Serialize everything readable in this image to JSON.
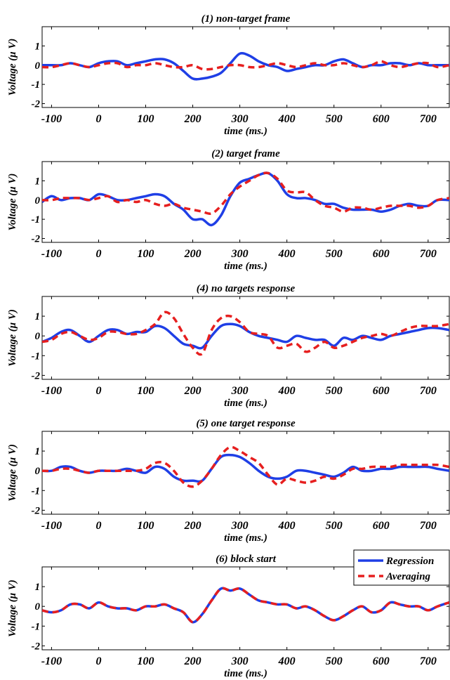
{
  "colors": {
    "regression": "#1f3fe6",
    "averaging": "#e61f1f",
    "axis": "#000000"
  },
  "legend": {
    "placement": "top-right",
    "entries": [
      "Regression",
      "Averaging"
    ]
  },
  "chart_data": [
    {
      "type": "line",
      "title": "(1) non-target frame",
      "xlabel": "time (ms.)",
      "ylabel": "Voltage (μ V)",
      "xlim": [
        -120,
        745
      ],
      "ylim": [
        -2.2,
        2.0
      ],
      "xticks": [
        "-100",
        "0",
        "100",
        "200",
        "300",
        "400",
        "500",
        "600",
        "700"
      ],
      "yticks": [
        "-2",
        "-1",
        "0",
        "1"
      ],
      "series": [
        {
          "name": "Regression",
          "x": [
            -120,
            -100,
            -80,
            -60,
            -40,
            -20,
            0,
            20,
            40,
            60,
            80,
            100,
            120,
            140,
            160,
            180,
            200,
            220,
            240,
            260,
            280,
            300,
            320,
            340,
            360,
            380,
            400,
            420,
            440,
            460,
            480,
            500,
            520,
            540,
            560,
            580,
            600,
            620,
            640,
            660,
            680,
            700,
            720,
            745
          ],
          "values": [
            0.0,
            0.0,
            0.0,
            0.1,
            0.0,
            -0.1,
            0.1,
            0.2,
            0.2,
            0.0,
            0.1,
            0.2,
            0.3,
            0.3,
            0.1,
            -0.3,
            -0.7,
            -0.7,
            -0.6,
            -0.4,
            0.1,
            0.6,
            0.5,
            0.2,
            0.0,
            -0.1,
            -0.3,
            -0.2,
            -0.1,
            0.0,
            0.0,
            0.2,
            0.3,
            0.1,
            -0.1,
            0.0,
            0.0,
            0.1,
            0.1,
            0.0,
            0.1,
            0.0,
            0.0,
            0.0
          ]
        },
        {
          "name": "Averaging",
          "x": [
            -120,
            -100,
            -80,
            -60,
            -40,
            -20,
            0,
            20,
            40,
            60,
            80,
            100,
            120,
            140,
            160,
            180,
            200,
            220,
            240,
            260,
            280,
            300,
            320,
            340,
            360,
            380,
            400,
            420,
            440,
            460,
            480,
            500,
            520,
            540,
            560,
            580,
            600,
            620,
            640,
            660,
            680,
            700,
            720,
            745
          ],
          "values": [
            -0.1,
            -0.1,
            0.0,
            0.1,
            0.0,
            -0.1,
            0.0,
            0.1,
            0.1,
            -0.1,
            0.0,
            0.0,
            0.1,
            0.0,
            -0.1,
            -0.1,
            0.0,
            -0.2,
            -0.2,
            -0.1,
            0.0,
            0.0,
            -0.1,
            -0.1,
            0.0,
            0.1,
            0.0,
            -0.1,
            0.0,
            0.1,
            0.0,
            0.0,
            0.1,
            0.0,
            -0.1,
            0.0,
            0.2,
            0.0,
            -0.1,
            0.0,
            0.1,
            0.1,
            -0.1,
            0.0
          ]
        }
      ]
    },
    {
      "type": "line",
      "title": "(2) target frame",
      "xlabel": "time (ms.)",
      "ylabel": "Voltage (μ V)",
      "xlim": [
        -120,
        745
      ],
      "ylim": [
        -2.2,
        2.0
      ],
      "xticks": [
        "-100",
        "0",
        "100",
        "200",
        "300",
        "400",
        "500",
        "600",
        "700"
      ],
      "yticks": [
        "-2",
        "-1",
        "0",
        "1"
      ],
      "series": [
        {
          "name": "Regression",
          "x": [
            -120,
            -100,
            -80,
            -60,
            -40,
            -20,
            0,
            20,
            40,
            60,
            80,
            100,
            120,
            140,
            160,
            180,
            200,
            220,
            240,
            260,
            280,
            300,
            320,
            340,
            360,
            380,
            400,
            420,
            440,
            460,
            480,
            500,
            520,
            540,
            560,
            580,
            600,
            620,
            640,
            660,
            680,
            700,
            720,
            745
          ],
          "values": [
            -0.1,
            0.2,
            0.0,
            0.1,
            0.1,
            0.0,
            0.3,
            0.2,
            0.0,
            0.0,
            0.1,
            0.2,
            0.3,
            0.2,
            -0.2,
            -0.5,
            -1.0,
            -1.0,
            -1.3,
            -0.8,
            0.2,
            0.9,
            1.1,
            1.3,
            1.4,
            1.0,
            0.3,
            0.1,
            0.1,
            0.0,
            -0.2,
            -0.2,
            -0.4,
            -0.5,
            -0.5,
            -0.5,
            -0.6,
            -0.5,
            -0.3,
            -0.2,
            -0.3,
            -0.3,
            0.0,
            0.0
          ]
        },
        {
          "name": "Averaging",
          "x": [
            -120,
            -100,
            -80,
            -60,
            -40,
            -20,
            0,
            20,
            40,
            60,
            80,
            100,
            120,
            140,
            160,
            180,
            200,
            220,
            240,
            260,
            280,
            300,
            320,
            340,
            360,
            380,
            400,
            420,
            440,
            460,
            480,
            500,
            520,
            540,
            560,
            580,
            600,
            620,
            640,
            660,
            680,
            700,
            720,
            745
          ],
          "values": [
            0.0,
            0.0,
            0.1,
            0.1,
            0.1,
            0.0,
            0.1,
            0.2,
            -0.1,
            0.0,
            -0.1,
            0.0,
            -0.2,
            -0.3,
            -0.2,
            -0.4,
            -0.5,
            -0.6,
            -0.7,
            -0.3,
            0.3,
            0.7,
            1.0,
            1.3,
            1.4,
            1.1,
            0.5,
            0.4,
            0.4,
            0.0,
            -0.3,
            -0.4,
            -0.6,
            -0.4,
            -0.4,
            -0.5,
            -0.4,
            -0.3,
            -0.3,
            -0.3,
            -0.4,
            -0.3,
            0.0,
            0.1
          ]
        }
      ]
    },
    {
      "type": "line",
      "title": "(4) no targets response",
      "xlabel": "time (ms.)",
      "ylabel": "Voltage (μ V)",
      "xlim": [
        -120,
        745
      ],
      "ylim": [
        -2.2,
        2.0
      ],
      "xticks": [
        "-100",
        "0",
        "100",
        "200",
        "300",
        "400",
        "500",
        "600",
        "700"
      ],
      "yticks": [
        "-2",
        "-1",
        "0",
        "1"
      ],
      "series": [
        {
          "name": "Regression",
          "x": [
            -120,
            -100,
            -80,
            -60,
            -40,
            -20,
            0,
            20,
            40,
            60,
            80,
            100,
            120,
            140,
            160,
            180,
            200,
            220,
            240,
            260,
            280,
            300,
            320,
            340,
            360,
            380,
            400,
            420,
            440,
            460,
            480,
            500,
            520,
            540,
            560,
            580,
            600,
            620,
            640,
            660,
            680,
            700,
            720,
            745
          ],
          "values": [
            -0.3,
            -0.1,
            0.2,
            0.3,
            0.0,
            -0.3,
            0.0,
            0.3,
            0.3,
            0.1,
            0.2,
            0.2,
            0.5,
            0.4,
            0.0,
            -0.4,
            -0.5,
            -0.6,
            0.0,
            0.5,
            0.6,
            0.5,
            0.2,
            0.0,
            -0.1,
            -0.2,
            -0.3,
            0.0,
            -0.1,
            -0.2,
            -0.2,
            -0.5,
            -0.1,
            -0.2,
            0.0,
            -0.1,
            -0.2,
            0.0,
            0.1,
            0.2,
            0.3,
            0.4,
            0.4,
            0.3
          ]
        },
        {
          "name": "Averaging",
          "x": [
            -120,
            -100,
            -80,
            -60,
            -40,
            -20,
            0,
            20,
            40,
            60,
            80,
            100,
            120,
            140,
            160,
            180,
            200,
            220,
            240,
            260,
            280,
            300,
            320,
            340,
            360,
            380,
            400,
            420,
            440,
            460,
            480,
            500,
            520,
            540,
            560,
            580,
            600,
            620,
            640,
            660,
            680,
            700,
            720,
            745
          ],
          "values": [
            -0.3,
            -0.2,
            0.1,
            0.2,
            0.0,
            -0.2,
            -0.1,
            0.2,
            0.2,
            0.1,
            0.1,
            0.3,
            0.6,
            1.2,
            0.9,
            0.1,
            -0.6,
            -0.9,
            0.3,
            0.9,
            1.0,
            0.7,
            0.2,
            0.1,
            0.0,
            -0.6,
            -0.5,
            -0.4,
            -0.8,
            -0.6,
            -0.3,
            -0.6,
            -0.5,
            -0.3,
            -0.1,
            0.0,
            0.1,
            0.0,
            0.2,
            0.4,
            0.5,
            0.5,
            0.5,
            0.6
          ]
        }
      ]
    },
    {
      "type": "line",
      "title": "(5) one target response",
      "xlabel": "time (ms.)",
      "ylabel": "Voltage (μ V)",
      "xlim": [
        -120,
        745
      ],
      "ylim": [
        -2.2,
        2.0
      ],
      "xticks": [
        "-100",
        "0",
        "100",
        "200",
        "300",
        "400",
        "500",
        "600",
        "700"
      ],
      "yticks": [
        "-2",
        "-1",
        "0",
        "1"
      ],
      "series": [
        {
          "name": "Regression",
          "x": [
            -120,
            -100,
            -80,
            -60,
            -40,
            -20,
            0,
            20,
            40,
            60,
            80,
            100,
            120,
            140,
            160,
            180,
            200,
            220,
            240,
            260,
            280,
            300,
            320,
            340,
            360,
            380,
            400,
            420,
            440,
            460,
            480,
            500,
            520,
            540,
            560,
            580,
            600,
            620,
            640,
            660,
            680,
            700,
            720,
            745
          ],
          "values": [
            0.0,
            0.0,
            0.2,
            0.2,
            0.0,
            -0.1,
            0.0,
            0.0,
            0.0,
            0.1,
            0.0,
            -0.1,
            0.2,
            0.1,
            -0.3,
            -0.5,
            -0.5,
            -0.5,
            0.1,
            0.7,
            0.8,
            0.7,
            0.4,
            0.0,
            -0.3,
            -0.4,
            -0.3,
            0.0,
            0.0,
            -0.1,
            -0.2,
            -0.3,
            -0.1,
            0.2,
            0.0,
            0.0,
            0.1,
            0.1,
            0.2,
            0.2,
            0.2,
            0.2,
            0.1,
            0.0
          ]
        },
        {
          "name": "Averaging",
          "x": [
            -120,
            -100,
            -80,
            -60,
            -40,
            -20,
            0,
            20,
            40,
            60,
            80,
            100,
            120,
            140,
            160,
            180,
            200,
            220,
            240,
            260,
            280,
            300,
            320,
            340,
            360,
            380,
            400,
            420,
            440,
            460,
            480,
            500,
            520,
            540,
            560,
            580,
            600,
            620,
            640,
            660,
            680,
            700,
            720,
            745
          ],
          "values": [
            0.0,
            0.0,
            0.1,
            0.1,
            0.0,
            -0.1,
            0.0,
            0.0,
            0.0,
            0.0,
            0.0,
            0.1,
            0.4,
            0.4,
            0.0,
            -0.6,
            -0.8,
            -0.5,
            0.1,
            0.8,
            1.2,
            1.0,
            0.7,
            0.4,
            -0.2,
            -0.7,
            -0.4,
            -0.5,
            -0.6,
            -0.5,
            -0.3,
            -0.4,
            -0.2,
            0.1,
            0.1,
            0.2,
            0.2,
            0.2,
            0.3,
            0.3,
            0.3,
            0.3,
            0.3,
            0.2
          ]
        }
      ]
    },
    {
      "type": "line",
      "title": "(6) block start",
      "xlabel": "time (ms.)",
      "ylabel": "Voltage (μ V)",
      "xlim": [
        -120,
        745
      ],
      "ylim": [
        -2.2,
        2.0
      ],
      "xticks": [
        "-100",
        "0",
        "100",
        "200",
        "300",
        "400",
        "500",
        "600",
        "700"
      ],
      "yticks": [
        "-2",
        "-1",
        "0",
        "1"
      ],
      "series": [
        {
          "name": "Regression",
          "x": [
            -120,
            -100,
            -80,
            -60,
            -40,
            -20,
            0,
            20,
            40,
            60,
            80,
            100,
            120,
            140,
            160,
            180,
            200,
            220,
            240,
            260,
            280,
            300,
            320,
            340,
            360,
            380,
            400,
            420,
            440,
            460,
            480,
            500,
            520,
            540,
            560,
            580,
            600,
            620,
            640,
            660,
            680,
            700,
            720,
            745
          ],
          "values": [
            -0.2,
            -0.3,
            -0.2,
            0.1,
            0.1,
            -0.1,
            0.2,
            0.0,
            -0.1,
            -0.1,
            -0.2,
            0.0,
            0.0,
            0.1,
            -0.1,
            -0.3,
            -0.8,
            -0.4,
            0.3,
            0.9,
            0.8,
            0.9,
            0.6,
            0.3,
            0.2,
            0.1,
            0.1,
            -0.1,
            0.0,
            -0.2,
            -0.5,
            -0.7,
            -0.5,
            -0.2,
            0.0,
            -0.3,
            -0.2,
            0.2,
            0.1,
            0.0,
            0.0,
            -0.2,
            0.0,
            0.2
          ]
        },
        {
          "name": "Averaging",
          "x": [
            -120,
            -100,
            -80,
            -60,
            -40,
            -20,
            0,
            20,
            40,
            60,
            80,
            100,
            120,
            140,
            160,
            180,
            200,
            220,
            240,
            260,
            280,
            300,
            320,
            340,
            360,
            380,
            400,
            420,
            440,
            460,
            480,
            500,
            520,
            540,
            560,
            580,
            600,
            620,
            640,
            660,
            680,
            700,
            720,
            745
          ],
          "values": [
            -0.2,
            -0.3,
            -0.2,
            0.1,
            0.1,
            -0.1,
            0.2,
            0.0,
            -0.1,
            -0.1,
            -0.2,
            0.0,
            0.0,
            0.1,
            -0.1,
            -0.3,
            -0.8,
            -0.4,
            0.3,
            0.9,
            0.8,
            0.9,
            0.6,
            0.3,
            0.2,
            0.1,
            0.1,
            -0.1,
            0.0,
            -0.2,
            -0.5,
            -0.7,
            -0.5,
            -0.2,
            0.0,
            -0.3,
            -0.2,
            0.2,
            0.1,
            0.0,
            0.0,
            -0.2,
            0.0,
            0.2
          ]
        }
      ]
    }
  ]
}
